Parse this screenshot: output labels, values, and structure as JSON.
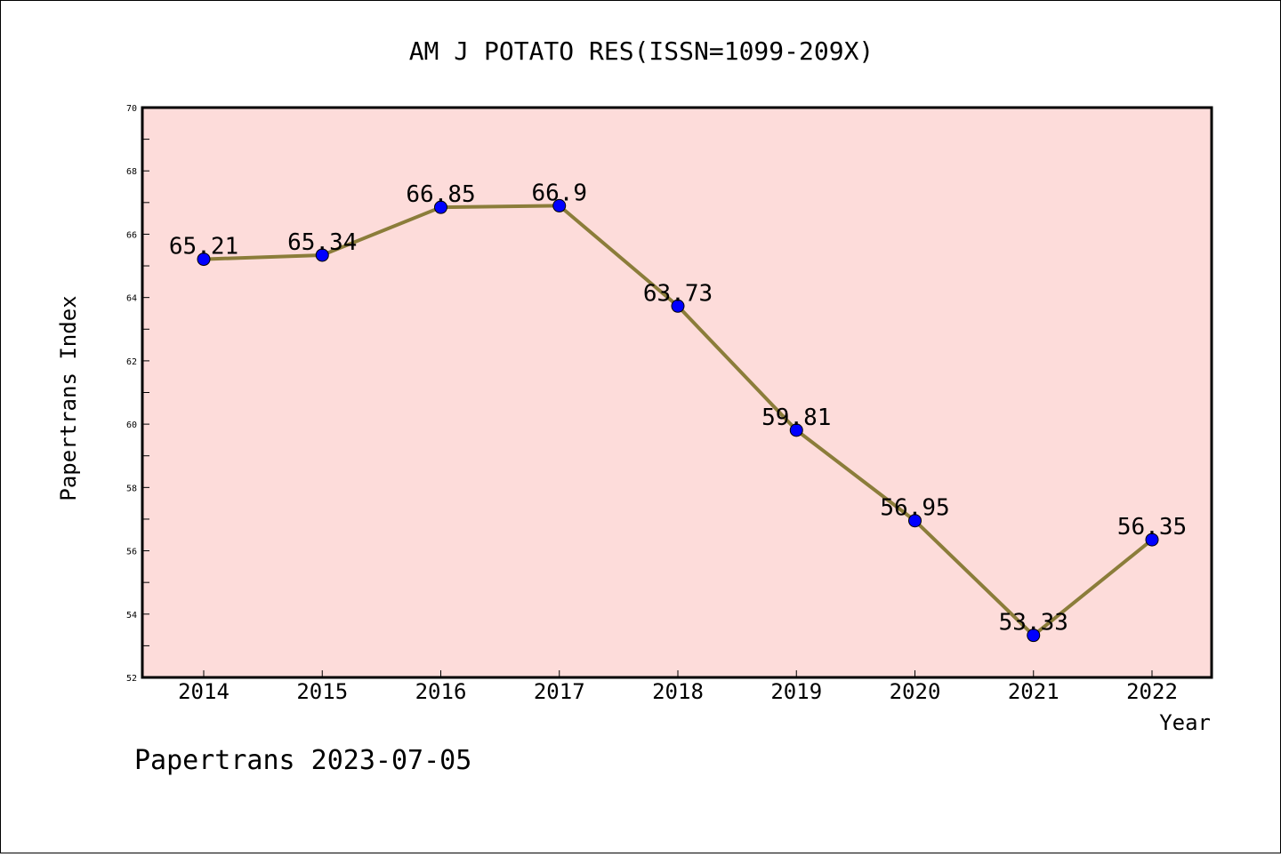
{
  "chart_data": {
    "type": "line",
    "title": "AM J POTATO RES(ISSN=1099-209X)",
    "xlabel": "Year",
    "ylabel": "Papertrans Index",
    "categories": [
      "2014",
      "2015",
      "2016",
      "2017",
      "2018",
      "2019",
      "2020",
      "2021",
      "2022"
    ],
    "values": [
      65.21,
      65.34,
      66.85,
      66.9,
      63.73,
      59.81,
      56.95,
      53.33,
      56.35
    ],
    "data_labels": [
      "65.21",
      "65.34",
      "66.85",
      "66.9",
      "63.73",
      "59.81",
      "56.95",
      "53.33",
      "56.35"
    ],
    "ylim": [
      52,
      70
    ],
    "yticks": [
      52,
      54,
      56,
      58,
      60,
      62,
      64,
      66,
      68,
      70
    ],
    "ytick_labels": [
      "52",
      "54",
      "56",
      "58",
      "60",
      "62",
      "64",
      "66",
      "68",
      "70"
    ],
    "grid": false,
    "colors": {
      "plot_background": "#fddcda",
      "line": "#8b7d3a",
      "marker": "#0000ff"
    }
  },
  "footer": {
    "text": "Papertrans 2023-07-05"
  }
}
